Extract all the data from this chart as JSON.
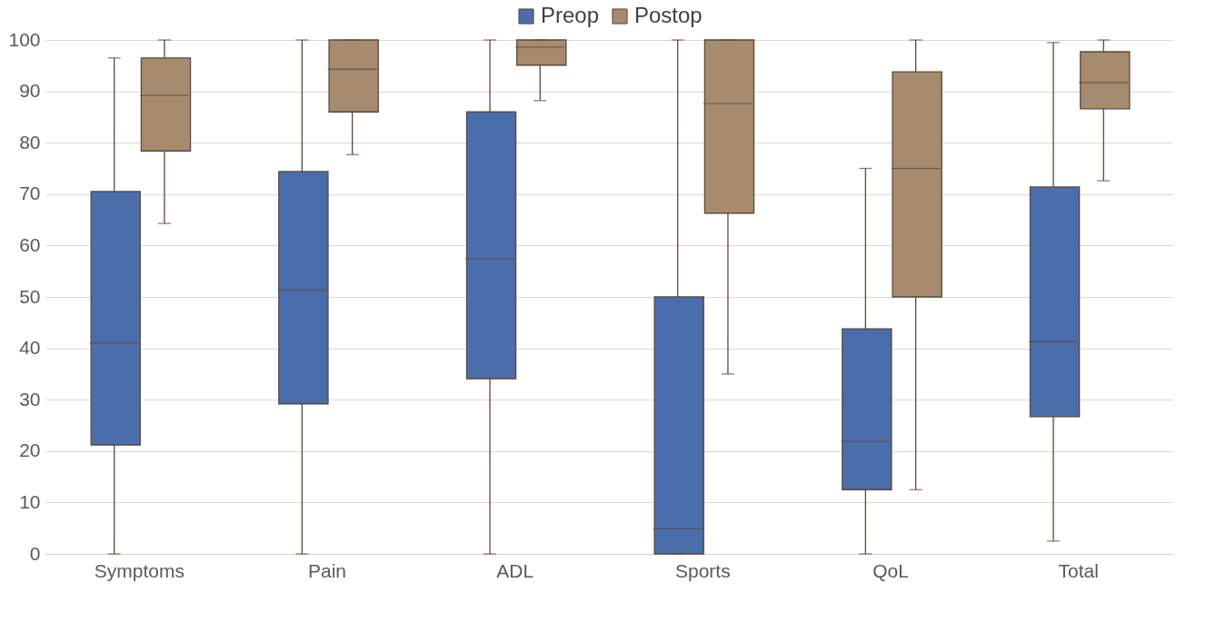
{
  "chart_data": {
    "type": "box",
    "categories": [
      "Symptoms",
      "Pain",
      "ADL",
      "Sports",
      "QoL",
      "Total"
    ],
    "series": [
      {
        "name": "Preop",
        "color": "#4a6dab",
        "boxes": [
          {
            "low": 0,
            "q1": 21.2,
            "median": 41,
            "q3": 70.5,
            "high": 96.5
          },
          {
            "low": 0,
            "q1": 29.2,
            "median": 51.4,
            "q3": 74.4,
            "high": 100
          },
          {
            "low": 0,
            "q1": 34.1,
            "median": 57.4,
            "q3": 86,
            "high": 100
          },
          {
            "low": 0,
            "q1": 0,
            "median": 4.9,
            "q3": 50,
            "high": 100
          },
          {
            "low": 0,
            "q1": 12.5,
            "median": 21.9,
            "q3": 43.8,
            "high": 75
          },
          {
            "low": 2.5,
            "q1": 26.7,
            "median": 41.3,
            "q3": 71.4,
            "high": 99.5
          }
        ]
      },
      {
        "name": "Postop",
        "color": "#a68b6f",
        "boxes": [
          {
            "low": 64.3,
            "q1": 78.4,
            "median": 89.2,
            "q3": 96.5,
            "high": 100
          },
          {
            "low": 77.7,
            "q1": 86,
            "median": 94.3,
            "q3": 100,
            "high": 100
          },
          {
            "low": 88.2,
            "q1": 95.1,
            "median": 98.6,
            "q3": 100,
            "high": 100
          },
          {
            "low": 35,
            "q1": 66.3,
            "median": 87.6,
            "q3": 100,
            "high": 100
          },
          {
            "low": 12.5,
            "q1": 50,
            "median": 75,
            "q3": 93.8,
            "high": 100
          },
          {
            "low": 72.6,
            "q1": 86.6,
            "median": 91.7,
            "q3": 97.7,
            "high": 100
          }
        ]
      }
    ],
    "ylim": [
      0,
      100
    ],
    "yticks": [
      0,
      10,
      20,
      30,
      40,
      50,
      60,
      70,
      80,
      90,
      100
    ],
    "grid": "y",
    "legend": "top"
  }
}
